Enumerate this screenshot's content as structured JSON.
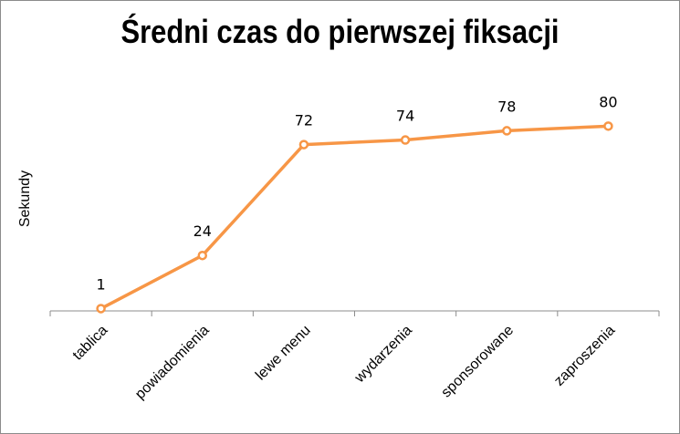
{
  "chart_data": {
    "type": "line",
    "title": "Średni czas do pierwszej fiksacji",
    "ylabel": "Sekundy",
    "xlabel": "",
    "categories": [
      "tablica",
      "powiadomienia",
      "lewe menu",
      "wydarzenia",
      "sponsorowane",
      "zaproszenia"
    ],
    "series": [
      {
        "values": [
          1,
          24,
          72,
          74,
          78,
          80
        ],
        "color": "#f79646"
      }
    ],
    "ylim": [
      0,
      120
    ],
    "data_labels": true,
    "legend": "none",
    "grid": false
  }
}
